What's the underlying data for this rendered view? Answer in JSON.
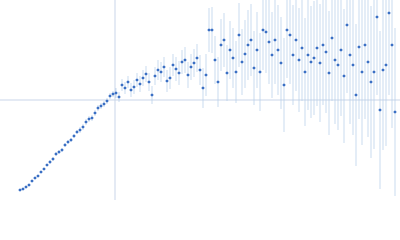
{
  "chart_data": {
    "type": "scatter",
    "xlim": [
      0,
      400
    ],
    "ylim": [
      0,
      200
    ],
    "axhline": 100,
    "axvline": 115,
    "color": "#3a6fc4",
    "error_color": "#b4cce8",
    "line_color": "#c8d6e8",
    "series": [
      {
        "x": [
          20,
          23,
          26,
          29,
          32,
          35,
          38,
          41,
          44,
          47,
          50,
          53,
          56,
          59,
          62,
          65,
          68,
          71,
          74,
          77,
          80,
          83,
          86,
          89,
          92,
          95,
          98,
          101,
          104,
          107,
          110,
          113,
          116,
          119,
          122,
          125,
          128,
          131,
          134,
          137,
          140,
          143,
          146,
          149,
          152,
          155,
          158,
          161,
          164,
          167,
          170,
          173,
          176,
          179,
          182,
          185,
          188,
          191,
          194,
          197,
          200,
          203,
          206,
          209,
          212,
          215,
          218,
          221,
          224,
          227,
          230,
          233,
          236,
          239,
          242,
          245,
          248,
          251,
          254,
          257,
          260,
          263,
          266,
          269,
          272,
          275,
          278,
          281,
          284,
          287,
          290,
          293,
          296,
          299,
          302,
          305,
          308,
          311,
          314,
          317,
          320,
          323,
          326,
          329,
          332,
          335,
          338,
          341,
          344,
          347,
          350,
          353,
          356,
          359,
          362,
          365,
          368,
          371,
          374,
          377,
          380,
          383,
          386,
          389,
          392,
          395
        ],
        "values": [
          10,
          11,
          13,
          15,
          19,
          22,
          24,
          28,
          31,
          35,
          38,
          41,
          46,
          48,
          50,
          55,
          58,
          60,
          64,
          68,
          70,
          73,
          78,
          81,
          82,
          87,
          92,
          94,
          96,
          99,
          104,
          106,
          107,
          103,
          115,
          112,
          118,
          110,
          113,
          120,
          116,
          122,
          126,
          118,
          105,
          124,
          130,
          128,
          133,
          119,
          122,
          135,
          131,
          127,
          138,
          140,
          125,
          133,
          137,
          142,
          130,
          112,
          125,
          170,
          170,
          140,
          118,
          155,
          160,
          127,
          150,
          142,
          128,
          165,
          138,
          146,
          155,
          160,
          132,
          150,
          128,
          170,
          168,
          158,
          145,
          160,
          150,
          137,
          115,
          170,
          165,
          145,
          160,
          140,
          152,
          128,
          145,
          138,
          142,
          152,
          137,
          155,
          148,
          127,
          162,
          140,
          135,
          150,
          124,
          175,
          145,
          135,
          105,
          153,
          128,
          155,
          138,
          118,
          128,
          183,
          90,
          130,
          135,
          187,
          155,
          88
        ],
        "errors": [
          1,
          1,
          1,
          1,
          1,
          1,
          1,
          1,
          1,
          1,
          2,
          2,
          2,
          2,
          2,
          2,
          2,
          2,
          2,
          2,
          3,
          3,
          3,
          3,
          3,
          3,
          3,
          3,
          3,
          3,
          3,
          3,
          5,
          5,
          6,
          6,
          6,
          7,
          7,
          7,
          8,
          8,
          8,
          9,
          9,
          9,
          10,
          10,
          10,
          11,
          11,
          11,
          12,
          12,
          12,
          13,
          13,
          13,
          14,
          14,
          15,
          20,
          21,
          22,
          23,
          24,
          25,
          26,
          27,
          28,
          29,
          30,
          31,
          32,
          33,
          34,
          35,
          36,
          37,
          38,
          39,
          40,
          41,
          42,
          43,
          44,
          45,
          46,
          47,
          48,
          49,
          50,
          51,
          52,
          53,
          54,
          55,
          56,
          57,
          58,
          59,
          60,
          61,
          62,
          63,
          64,
          65,
          66,
          67,
          68,
          69,
          70,
          71,
          72,
          73,
          74,
          75,
          76,
          77,
          78,
          79,
          80,
          81,
          82,
          83,
          84
        ]
      }
    ]
  }
}
